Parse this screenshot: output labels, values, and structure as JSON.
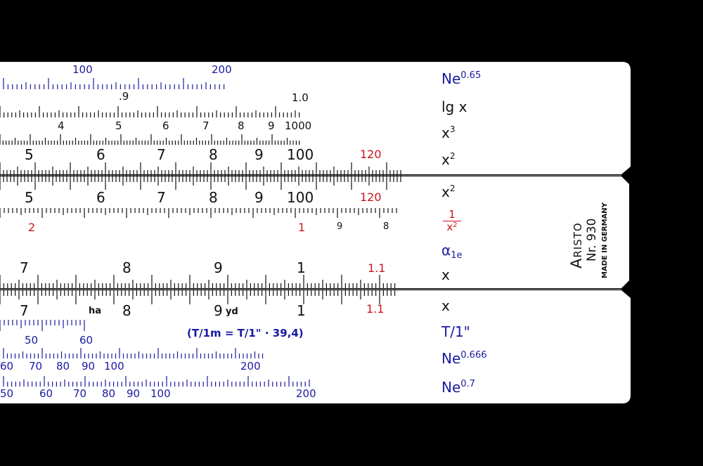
{
  "colors": {
    "background": "#000000",
    "rule_body": "#ffffff",
    "ink_black": "#111111",
    "ink_blue": "#1a1aa0",
    "ink_red": "#c8151b",
    "divider": "#9a9a9a"
  },
  "brand": {
    "name": "Aristo",
    "model": "Nr. 930",
    "origin": "MADE IN GERMANY"
  },
  "scale_labels": {
    "ne065": {
      "base": "Ne",
      "exp": "0.65"
    },
    "lgx": "lg x",
    "x3": {
      "base": "x",
      "exp": "3"
    },
    "x2_top": {
      "base": "x",
      "exp": "2"
    },
    "x2_slide": {
      "base": "x",
      "exp": "2"
    },
    "inv_x2": {
      "num": "1",
      "den_base": "x",
      "den_exp": "2"
    },
    "alpha1e": {
      "base": "α",
      "sub": "1e"
    },
    "x_slide": "x",
    "x_bottom": "x",
    "t1inch": "T/1\"",
    "ne0666": {
      "base": "Ne",
      "exp": "0.666"
    },
    "ne07": {
      "base": "Ne",
      "exp": "0.7"
    }
  },
  "numbers": {
    "ne065": [
      "100",
      "200"
    ],
    "lg": [
      ".9",
      "1.0"
    ],
    "cube": [
      "4",
      "5",
      "6",
      "7",
      "8",
      "9",
      "1000"
    ],
    "square_top": [
      "5",
      "6",
      "7",
      "8",
      "9",
      "100",
      "120"
    ],
    "square_slide": [
      "5",
      "6",
      "7",
      "8",
      "9",
      "100",
      "120"
    ],
    "reciprocal": [
      "2",
      "1",
      "9",
      "8"
    ],
    "x_slide": [
      "7",
      "8",
      "9",
      "1",
      "1.1"
    ],
    "x_bottom": [
      "7",
      "ha",
      "8",
      "9",
      "yd",
      "1",
      "1.1"
    ],
    "t_scale": [
      "50",
      "60"
    ],
    "t_formula": "(T/1m = T/1\" · 39,4)",
    "ne0666": [
      "60",
      "70",
      "80",
      "90",
      "100",
      "200"
    ],
    "ne07": [
      "50",
      "60",
      "70",
      "80",
      "90",
      "100",
      "200"
    ]
  }
}
